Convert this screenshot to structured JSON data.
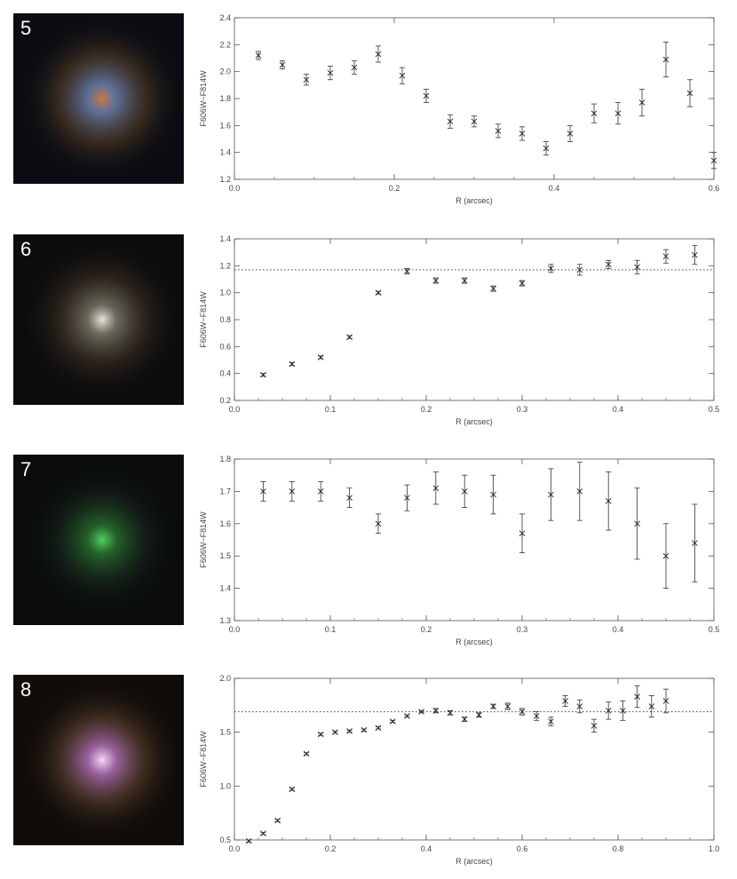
{
  "panels": [
    {
      "id": "5",
      "image": {
        "label": "5",
        "colors": {
          "background": "#0b0d12",
          "core": "#c8784a",
          "ring": "#6a80b0",
          "halo": "#6a4a30"
        }
      },
      "chart_data": {
        "type": "scatter",
        "xlabel": "R (arcsec)",
        "ylabel": "F606W−F814W",
        "xlim": [
          0.0,
          0.6
        ],
        "ylim": [
          1.2,
          2.4
        ],
        "xticks": [
          "0.0",
          "0.2",
          "0.4",
          "0.6"
        ],
        "yticks": [
          "1.2",
          "1.4",
          "1.6",
          "1.8",
          "2.0",
          "2.2",
          "2.4"
        ],
        "reference_line": null,
        "points": [
          {
            "x": 0.03,
            "y": 2.12,
            "err": 0.03
          },
          {
            "x": 0.06,
            "y": 2.05,
            "err": 0.03
          },
          {
            "x": 0.09,
            "y": 1.94,
            "err": 0.04
          },
          {
            "x": 0.12,
            "y": 1.99,
            "err": 0.05
          },
          {
            "x": 0.15,
            "y": 2.03,
            "err": 0.05
          },
          {
            "x": 0.18,
            "y": 2.13,
            "err": 0.06
          },
          {
            "x": 0.21,
            "y": 1.97,
            "err": 0.06
          },
          {
            "x": 0.24,
            "y": 1.82,
            "err": 0.05
          },
          {
            "x": 0.27,
            "y": 1.63,
            "err": 0.05
          },
          {
            "x": 0.3,
            "y": 1.63,
            "err": 0.04
          },
          {
            "x": 0.33,
            "y": 1.56,
            "err": 0.05
          },
          {
            "x": 0.36,
            "y": 1.54,
            "err": 0.05
          },
          {
            "x": 0.39,
            "y": 1.43,
            "err": 0.05
          },
          {
            "x": 0.42,
            "y": 1.54,
            "err": 0.06
          },
          {
            "x": 0.45,
            "y": 1.69,
            "err": 0.07
          },
          {
            "x": 0.48,
            "y": 1.69,
            "err": 0.08
          },
          {
            "x": 0.51,
            "y": 1.77,
            "err": 0.1
          },
          {
            "x": 0.54,
            "y": 2.09,
            "err": 0.13
          },
          {
            "x": 0.57,
            "y": 1.84,
            "err": 0.1
          },
          {
            "x": 0.6,
            "y": 1.34,
            "err": 0.06
          }
        ]
      }
    },
    {
      "id": "6",
      "image": {
        "label": "6",
        "colors": {
          "background": "#0c0c0e",
          "core": "#e8e4dc",
          "ring": "#7a7a6a",
          "halo": "#4a3a28"
        }
      },
      "chart_data": {
        "type": "scatter",
        "xlabel": "R (arcsec)",
        "ylabel": "F606W−F814W",
        "xlim": [
          0.0,
          0.5
        ],
        "ylim": [
          0.2,
          1.4
        ],
        "xticks": [
          "0.0",
          "0.1",
          "0.2",
          "0.3",
          "0.4",
          "0.5"
        ],
        "yticks": [
          "0.2",
          "0.4",
          "0.6",
          "0.8",
          "1.0",
          "1.2",
          "1.4"
        ],
        "reference_line": 1.17,
        "points": [
          {
            "x": 0.03,
            "y": 0.39,
            "err": 0.01
          },
          {
            "x": 0.06,
            "y": 0.47,
            "err": 0.01
          },
          {
            "x": 0.09,
            "y": 0.52,
            "err": 0.01
          },
          {
            "x": 0.12,
            "y": 0.67,
            "err": 0.01
          },
          {
            "x": 0.15,
            "y": 1.0,
            "err": 0.01
          },
          {
            "x": 0.18,
            "y": 1.16,
            "err": 0.02
          },
          {
            "x": 0.21,
            "y": 1.09,
            "err": 0.02
          },
          {
            "x": 0.24,
            "y": 1.09,
            "err": 0.02
          },
          {
            "x": 0.27,
            "y": 1.03,
            "err": 0.02
          },
          {
            "x": 0.3,
            "y": 1.07,
            "err": 0.02
          },
          {
            "x": 0.33,
            "y": 1.18,
            "err": 0.03
          },
          {
            "x": 0.36,
            "y": 1.17,
            "err": 0.04
          },
          {
            "x": 0.39,
            "y": 1.21,
            "err": 0.03
          },
          {
            "x": 0.42,
            "y": 1.19,
            "err": 0.05
          },
          {
            "x": 0.45,
            "y": 1.27,
            "err": 0.05
          },
          {
            "x": 0.48,
            "y": 1.28,
            "err": 0.07
          }
        ]
      }
    },
    {
      "id": "7",
      "image": {
        "label": "7",
        "colors": {
          "background": "#0a0b0d",
          "core": "#4fd060",
          "ring": "#2a7030",
          "halo": "#1c3020"
        }
      },
      "chart_data": {
        "type": "scatter",
        "xlabel": "R (arcsec)",
        "ylabel": "F606W−F814W",
        "xlim": [
          0.0,
          0.5
        ],
        "ylim": [
          1.3,
          1.8
        ],
        "xticks": [
          "0.0",
          "0.1",
          "0.2",
          "0.3",
          "0.4",
          "0.5"
        ],
        "yticks": [
          "1.3",
          "1.4",
          "1.5",
          "1.6",
          "1.7",
          "1.8"
        ],
        "reference_line": null,
        "points": [
          {
            "x": 0.03,
            "y": 1.7,
            "err": 0.03
          },
          {
            "x": 0.06,
            "y": 1.7,
            "err": 0.03
          },
          {
            "x": 0.09,
            "y": 1.7,
            "err": 0.03
          },
          {
            "x": 0.12,
            "y": 1.68,
            "err": 0.03
          },
          {
            "x": 0.15,
            "y": 1.6,
            "err": 0.03
          },
          {
            "x": 0.18,
            "y": 1.68,
            "err": 0.04
          },
          {
            "x": 0.21,
            "y": 1.71,
            "err": 0.05
          },
          {
            "x": 0.24,
            "y": 1.7,
            "err": 0.05
          },
          {
            "x": 0.27,
            "y": 1.69,
            "err": 0.06
          },
          {
            "x": 0.3,
            "y": 1.57,
            "err": 0.06
          },
          {
            "x": 0.33,
            "y": 1.69,
            "err": 0.08
          },
          {
            "x": 0.36,
            "y": 1.7,
            "err": 0.09
          },
          {
            "x": 0.39,
            "y": 1.67,
            "err": 0.09
          },
          {
            "x": 0.42,
            "y": 1.6,
            "err": 0.11
          },
          {
            "x": 0.45,
            "y": 1.5,
            "err": 0.1
          },
          {
            "x": 0.48,
            "y": 1.54,
            "err": 0.12
          }
        ]
      }
    },
    {
      "id": "8",
      "image": {
        "label": "8",
        "colors": {
          "background": "#100c0a",
          "core": "#f4d8f8",
          "ring": "#b070b8",
          "halo": "#6a4a30"
        }
      },
      "chart_data": {
        "type": "scatter",
        "xlabel": "R (arcsec)",
        "ylabel": "F606W−F814W",
        "xlim": [
          0.0,
          1.0
        ],
        "ylim": [
          0.5,
          2.0
        ],
        "xticks": [
          "0.0",
          "0.2",
          "0.4",
          "0.6",
          "0.8",
          "1.0"
        ],
        "yticks": [
          "0.5",
          "1.0",
          "1.5",
          "2.0"
        ],
        "reference_line": 1.69,
        "points": [
          {
            "x": 0.03,
            "y": 0.49,
            "err": 0.01
          },
          {
            "x": 0.06,
            "y": 0.56,
            "err": 0.01
          },
          {
            "x": 0.09,
            "y": 0.68,
            "err": 0.01
          },
          {
            "x": 0.12,
            "y": 0.97,
            "err": 0.01
          },
          {
            "x": 0.15,
            "y": 1.3,
            "err": 0.01
          },
          {
            "x": 0.18,
            "y": 1.48,
            "err": 0.01
          },
          {
            "x": 0.21,
            "y": 1.5,
            "err": 0.01
          },
          {
            "x": 0.24,
            "y": 1.51,
            "err": 0.01
          },
          {
            "x": 0.27,
            "y": 1.52,
            "err": 0.01
          },
          {
            "x": 0.3,
            "y": 1.54,
            "err": 0.01
          },
          {
            "x": 0.33,
            "y": 1.6,
            "err": 0.01
          },
          {
            "x": 0.36,
            "y": 1.65,
            "err": 0.01
          },
          {
            "x": 0.39,
            "y": 1.69,
            "err": 0.01
          },
          {
            "x": 0.42,
            "y": 1.7,
            "err": 0.02
          },
          {
            "x": 0.45,
            "y": 1.68,
            "err": 0.02
          },
          {
            "x": 0.48,
            "y": 1.62,
            "err": 0.02
          },
          {
            "x": 0.51,
            "y": 1.66,
            "err": 0.02
          },
          {
            "x": 0.54,
            "y": 1.74,
            "err": 0.02
          },
          {
            "x": 0.57,
            "y": 1.74,
            "err": 0.03
          },
          {
            "x": 0.6,
            "y": 1.69,
            "err": 0.03
          },
          {
            "x": 0.63,
            "y": 1.65,
            "err": 0.04
          },
          {
            "x": 0.66,
            "y": 1.6,
            "err": 0.04
          },
          {
            "x": 0.69,
            "y": 1.79,
            "err": 0.05
          },
          {
            "x": 0.72,
            "y": 1.74,
            "err": 0.06
          },
          {
            "x": 0.75,
            "y": 1.56,
            "err": 0.06
          },
          {
            "x": 0.78,
            "y": 1.7,
            "err": 0.08
          },
          {
            "x": 0.81,
            "y": 1.7,
            "err": 0.09
          },
          {
            "x": 0.84,
            "y": 1.83,
            "err": 0.1
          },
          {
            "x": 0.87,
            "y": 1.74,
            "err": 0.1
          },
          {
            "x": 0.9,
            "y": 1.79,
            "err": 0.11
          }
        ]
      }
    }
  ]
}
